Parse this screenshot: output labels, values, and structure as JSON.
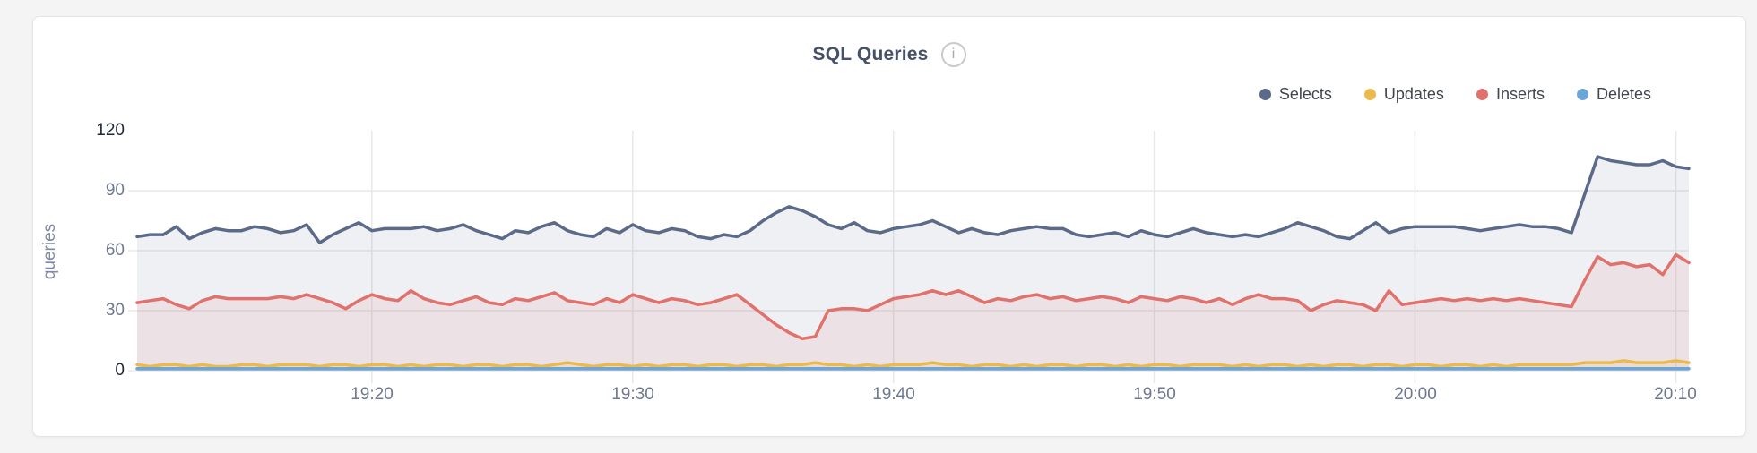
{
  "header": {
    "title": "SQL Queries",
    "info_icon": "i"
  },
  "colors": {
    "page_background": "#f5f4f5",
    "card_background": "#ffffff",
    "card_border": "#e5e4e4",
    "title_text": "#475069",
    "legend_text": "#41454e",
    "tick_text": "#6e7890",
    "tick_text_strong": "#1f2637",
    "axis_title_text": "#8089a0"
  },
  "chart_data": {
    "type": "area",
    "title": "SQL Queries",
    "xlabel": "",
    "ylabel": "queries",
    "ylim": [
      0,
      120
    ],
    "grid": true,
    "grid_color": "#e9e8e8",
    "legend_position": "top-right",
    "x_start": "19:11",
    "x_interval_seconds": 30,
    "y_ticks": [
      {
        "value": 0,
        "strong": true
      },
      {
        "value": 30,
        "strong": false
      },
      {
        "value": 60,
        "strong": false
      },
      {
        "value": 90,
        "strong": false
      },
      {
        "value": 120,
        "strong": true
      }
    ],
    "x_ticks": [
      {
        "label": "19:20",
        "index": 18
      },
      {
        "label": "19:30",
        "index": 38
      },
      {
        "label": "19:40",
        "index": 58
      },
      {
        "label": "19:50",
        "index": 78
      },
      {
        "label": "20:00",
        "index": 98
      },
      {
        "label": "20:10",
        "index": 118
      }
    ],
    "series": [
      {
        "name": "Selects",
        "color": "#5c6a89",
        "fill": "rgba(92,106,137,0.10)",
        "values": [
          67,
          68,
          68,
          72,
          66,
          69,
          71,
          70,
          70,
          72,
          71,
          69,
          70,
          73,
          64,
          68,
          71,
          74,
          70,
          71,
          71,
          71,
          72,
          70,
          71,
          73,
          70,
          68,
          66,
          70,
          69,
          72,
          74,
          70,
          68,
          67,
          71,
          69,
          73,
          70,
          69,
          71,
          70,
          67,
          66,
          68,
          67,
          70,
          75,
          79,
          82,
          80,
          77,
          73,
          71,
          74,
          70,
          69,
          71,
          72,
          73,
          75,
          72,
          69,
          71,
          69,
          68,
          70,
          71,
          72,
          71,
          71,
          68,
          67,
          68,
          69,
          67,
          70,
          68,
          67,
          69,
          71,
          69,
          68,
          67,
          68,
          67,
          69,
          71,
          74,
          72,
          70,
          67,
          66,
          70,
          74,
          69,
          71,
          72,
          72,
          72,
          72,
          71,
          70,
          71,
          72,
          73,
          72,
          72,
          71,
          69,
          88,
          107,
          105,
          104,
          103,
          103,
          105,
          102,
          101
        ]
      },
      {
        "name": "Updates",
        "color": "#ebba4d",
        "fill": "rgba(235,186,77,0.12)",
        "values": [
          3,
          2,
          3,
          3,
          2,
          3,
          2,
          2,
          3,
          3,
          2,
          3,
          3,
          3,
          2,
          3,
          3,
          2,
          3,
          3,
          2,
          3,
          2,
          3,
          3,
          2,
          3,
          3,
          2,
          3,
          3,
          2,
          3,
          4,
          3,
          2,
          3,
          3,
          2,
          3,
          2,
          3,
          3,
          2,
          3,
          3,
          2,
          3,
          3,
          2,
          3,
          3,
          4,
          3,
          3,
          2,
          3,
          2,
          3,
          3,
          3,
          4,
          3,
          3,
          2,
          3,
          3,
          2,
          3,
          2,
          3,
          3,
          2,
          3,
          3,
          2,
          3,
          2,
          3,
          3,
          2,
          3,
          3,
          3,
          2,
          3,
          2,
          3,
          3,
          2,
          3,
          2,
          3,
          3,
          2,
          3,
          3,
          2,
          3,
          3,
          2,
          3,
          3,
          2,
          3,
          2,
          3,
          3,
          3,
          3,
          3,
          4,
          4,
          4,
          5,
          4,
          4,
          4,
          5,
          4
        ]
      },
      {
        "name": "Inserts",
        "color": "#e0716d",
        "fill": "rgba(224,113,109,0.11)",
        "values": [
          34,
          35,
          36,
          33,
          31,
          35,
          37,
          36,
          36,
          36,
          36,
          37,
          36,
          38,
          36,
          34,
          31,
          35,
          38,
          36,
          35,
          40,
          36,
          34,
          33,
          35,
          37,
          34,
          33,
          36,
          35,
          37,
          39,
          35,
          34,
          33,
          36,
          34,
          38,
          36,
          34,
          36,
          35,
          33,
          34,
          36,
          38,
          33,
          28,
          23,
          19,
          16,
          17,
          30,
          31,
          31,
          30,
          33,
          36,
          37,
          38,
          40,
          38,
          40,
          37,
          34,
          36,
          35,
          37,
          38,
          36,
          37,
          35,
          36,
          37,
          36,
          34,
          37,
          36,
          35,
          37,
          36,
          34,
          36,
          33,
          36,
          38,
          36,
          36,
          35,
          30,
          33,
          35,
          34,
          33,
          30,
          40,
          33,
          34,
          35,
          36,
          35,
          36,
          35,
          36,
          35,
          36,
          35,
          34,
          33,
          32,
          45,
          57,
          53,
          54,
          52,
          53,
          48,
          58,
          54
        ]
      },
      {
        "name": "Deletes",
        "color": "#6ca6d9",
        "fill": "rgba(108,166,217,0.12)",
        "values": [
          1,
          1,
          1,
          1,
          1,
          1,
          1,
          1,
          1,
          1,
          1,
          1,
          1,
          1,
          1,
          1,
          1,
          1,
          1,
          1,
          1,
          1,
          1,
          1,
          1,
          1,
          1,
          1,
          1,
          1,
          1,
          1,
          1,
          1,
          1,
          1,
          1,
          1,
          1,
          1,
          1,
          1,
          1,
          1,
          1,
          1,
          1,
          1,
          1,
          1,
          1,
          1,
          1,
          1,
          1,
          1,
          1,
          1,
          1,
          1,
          1,
          1,
          1,
          1,
          1,
          1,
          1,
          1,
          1,
          1,
          1,
          1,
          1,
          1,
          1,
          1,
          1,
          1,
          1,
          1,
          1,
          1,
          1,
          1,
          1,
          1,
          1,
          1,
          1,
          1,
          1,
          1,
          1,
          1,
          1,
          1,
          1,
          1,
          1,
          1,
          1,
          1,
          1,
          1,
          1,
          1,
          1,
          1,
          1,
          1,
          1,
          1,
          1,
          1,
          1,
          1,
          1,
          1,
          1,
          1
        ]
      }
    ]
  }
}
